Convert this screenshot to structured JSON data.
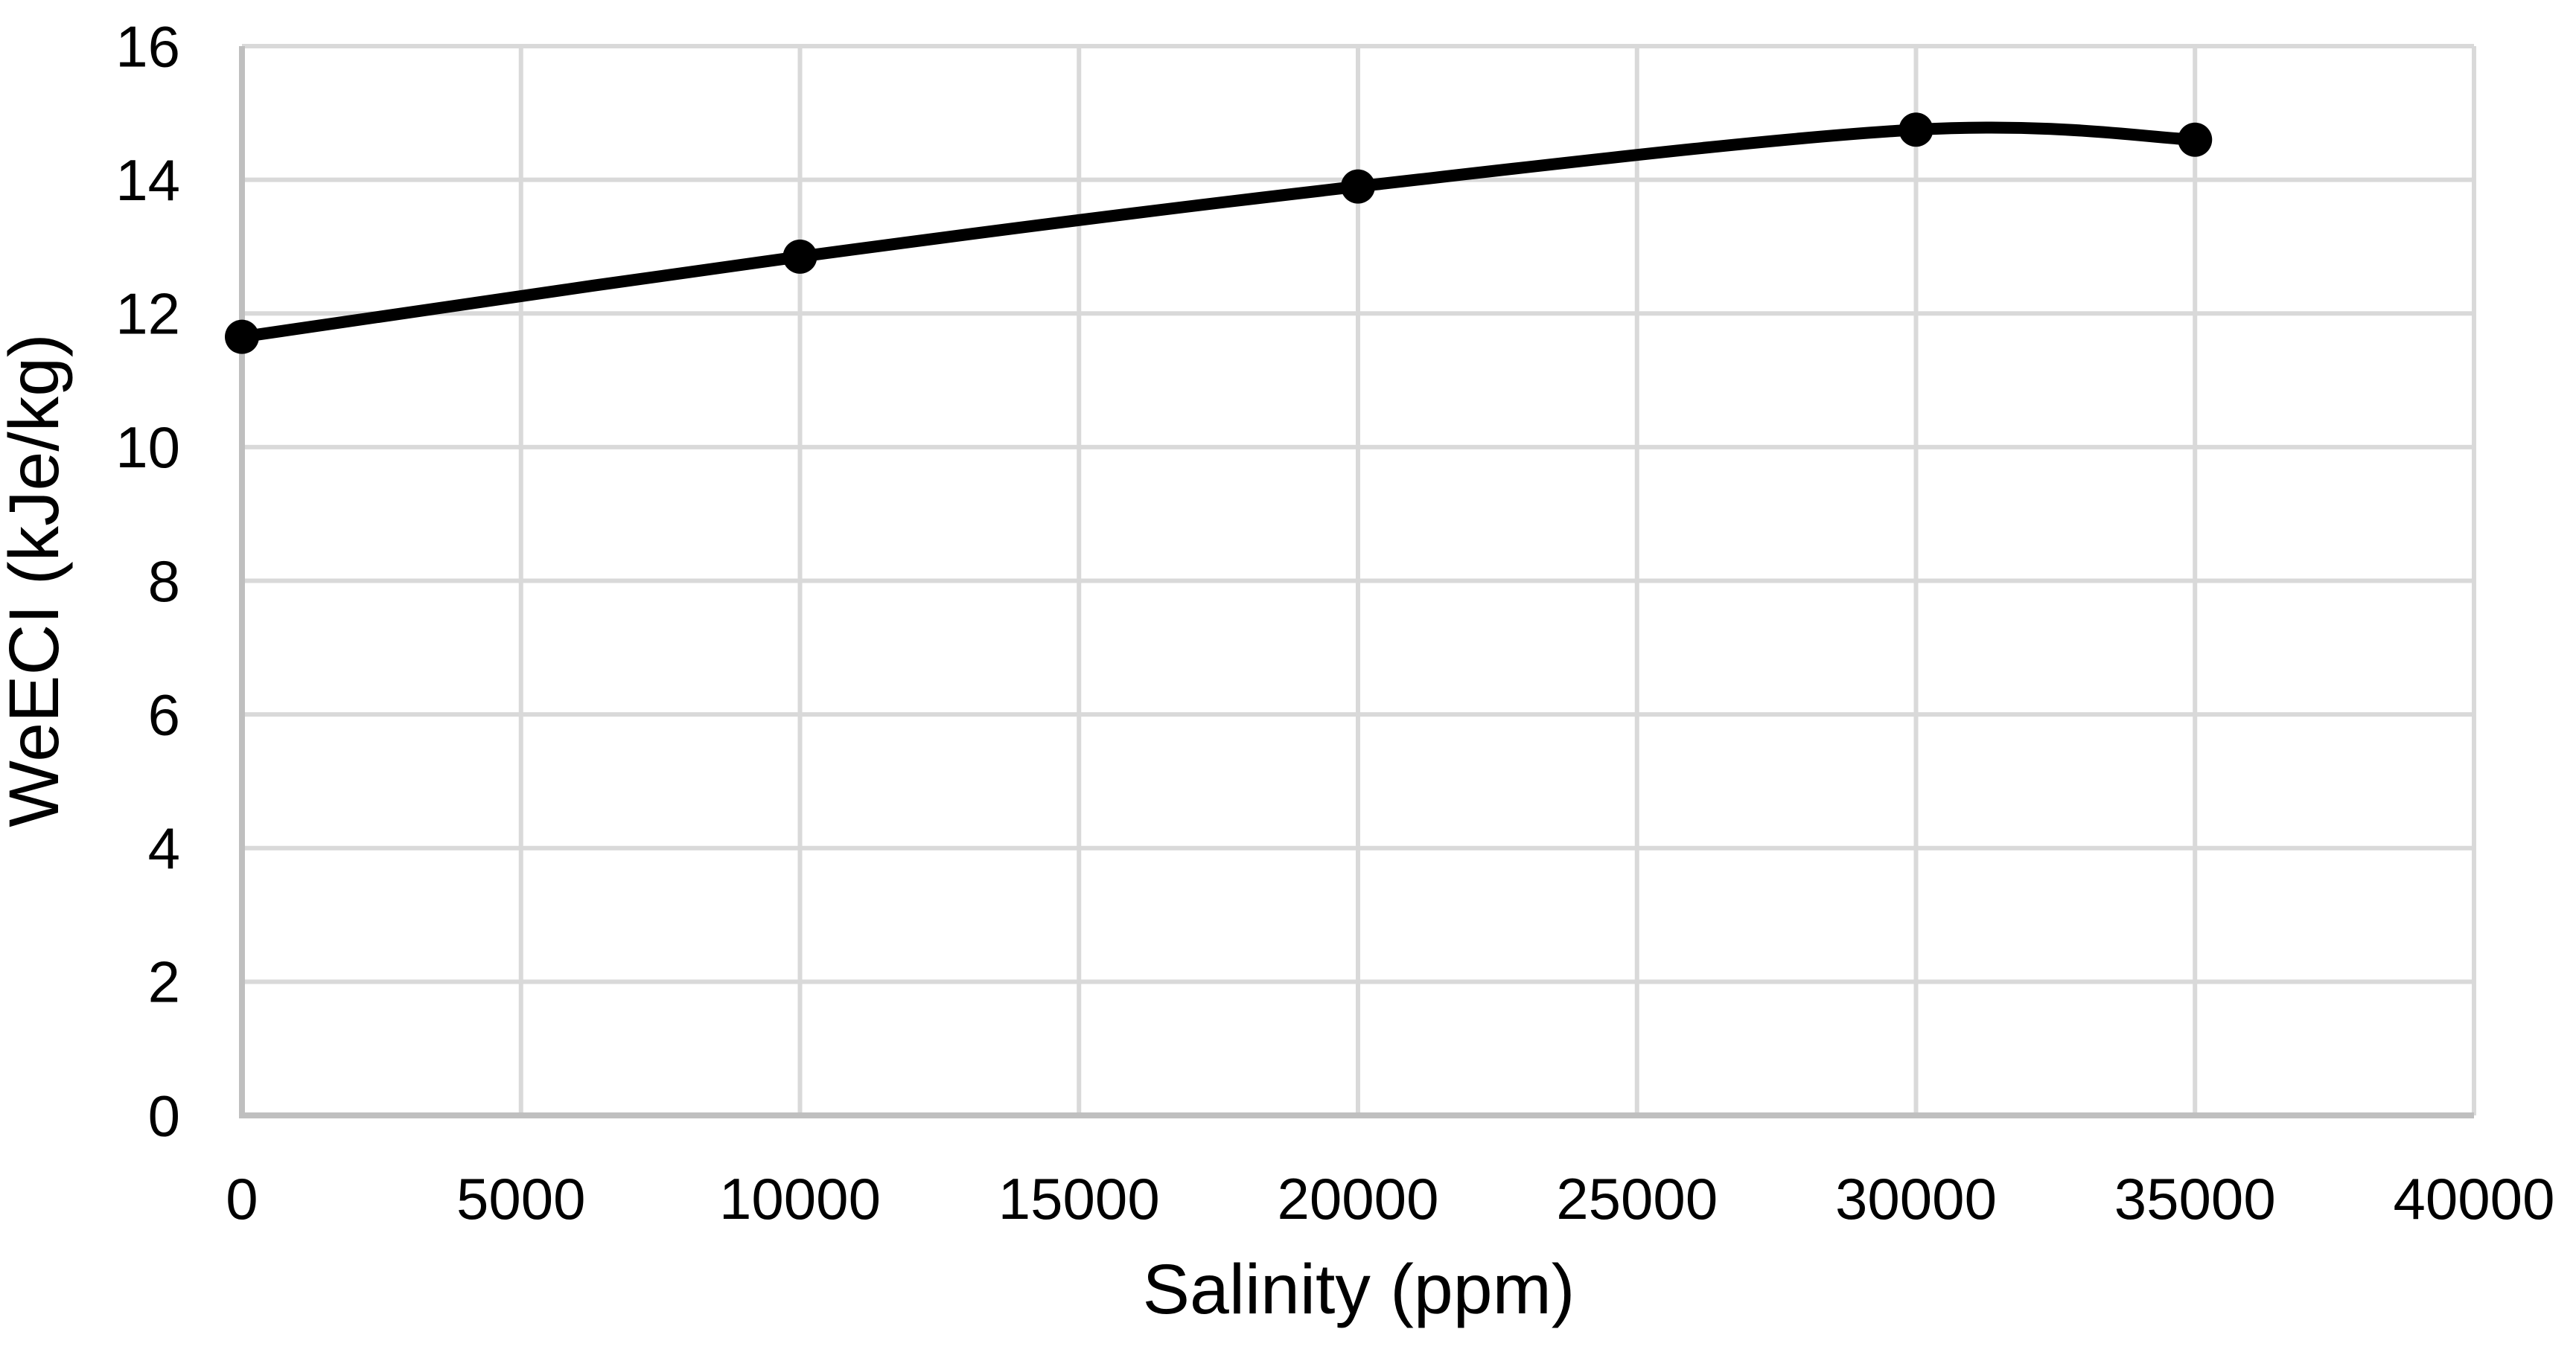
{
  "chart_data": {
    "type": "line",
    "title": "",
    "xlabel": "Salinity (ppm)",
    "ylabel": "WeECI (kJe/kg)",
    "xlim": [
      0,
      40000
    ],
    "ylim": [
      0,
      16
    ],
    "x_ticks": [
      0,
      5000,
      10000,
      15000,
      20000,
      25000,
      30000,
      35000,
      40000
    ],
    "y_ticks": [
      0,
      2,
      4,
      6,
      8,
      10,
      12,
      14,
      16
    ],
    "grid": true,
    "legend": false,
    "smooth": true,
    "series": [
      {
        "name": "WeECI",
        "x": [
          0,
          10000,
          20000,
          30000,
          35000
        ],
        "y": [
          11.65,
          12.85,
          13.9,
          14.75,
          14.6
        ]
      }
    ],
    "colors": {
      "line": "#000000",
      "marker": "#000000",
      "gridline": "#d9d9d9",
      "axis_line": "#bfbfbf",
      "text": "#000000",
      "background": "#ffffff"
    },
    "style": {
      "line_width": 16,
      "marker_radius": 23,
      "gridline_width": 6,
      "axis_line_width": 8
    }
  }
}
